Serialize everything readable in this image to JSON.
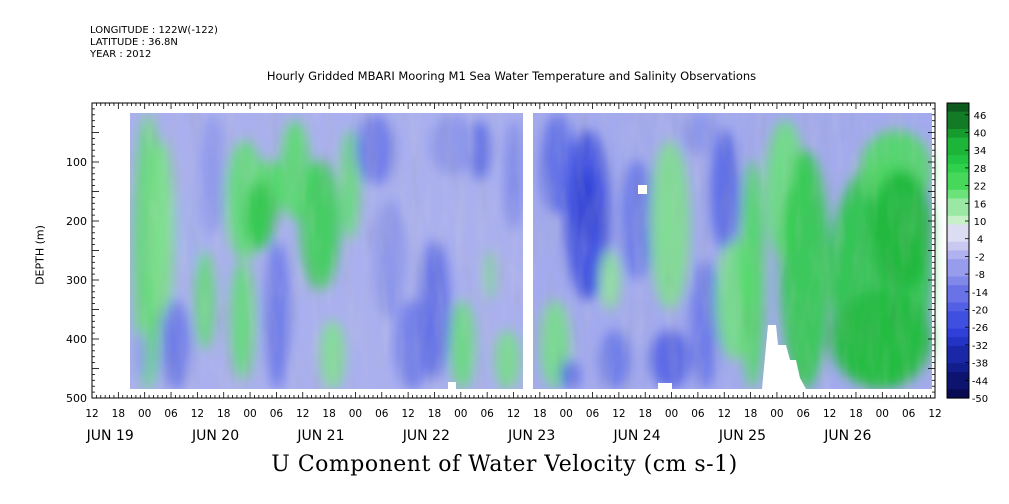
{
  "header": {
    "longitude": "LONGITUDE : 122W(-122)",
    "latitude": "LATITUDE : 36.8N",
    "year": "YEAR : 2012",
    "title": "Hourly Gridded MBARI Mooring M1 Sea Water Temperature and Salinity Observations"
  },
  "chart_data": {
    "type": "heatmap",
    "title": "Hourly Gridded MBARI Mooring M1 Sea Water Temperature and Salinity Observations",
    "xlabel": "U Component of Water Velocity (cm s-1)",
    "ylabel": "DEPTH (m)",
    "x_range_hours_labels": [
      "JUN 19 12",
      "JUN 26 12"
    ],
    "ylim": [
      500,
      0
    ],
    "y_ticks": [
      100,
      200,
      300,
      400,
      500
    ],
    "hour_tick_labels": [
      "12",
      "18",
      "00",
      "06",
      "12",
      "18",
      "00",
      "06",
      "12",
      "18",
      "00",
      "06",
      "12",
      "18",
      "00",
      "06",
      "12",
      "18",
      "00",
      "06",
      "12",
      "18",
      "00",
      "06",
      "12",
      "18",
      "00",
      "06",
      "12",
      "18",
      "00",
      "06",
      "12"
    ],
    "date_labels": [
      "JUN 19",
      "JUN 20",
      "JUN 21",
      "JUN 22",
      "JUN 23",
      "JUN 24",
      "JUN 25",
      "JUN 26"
    ],
    "colorbar": {
      "label_values": [
        "46",
        "40",
        "34",
        "28",
        "22",
        "16",
        "10",
        "4",
        "-2",
        "-8",
        "-14",
        "-20",
        "-26",
        "-32",
        "-38",
        "-44",
        "-50"
      ],
      "range": [
        -50,
        50
      ],
      "step": 3,
      "colors_high_to_low": [
        "#0e5a1e",
        "#137a26",
        "#179b2e",
        "#1db539",
        "#22c443",
        "#2ed04c",
        "#46d85a",
        "#6be27a",
        "#9ae8a3",
        "#c8f0c8",
        "#dcdcf2",
        "#c8c8f0",
        "#afb2ee",
        "#979dec",
        "#8088ea",
        "#6a72e8",
        "#5460e4",
        "#3f4fe0",
        "#2f3fd8",
        "#2333c4",
        "#1a28a8",
        "#121e8c",
        "#0c1470",
        "#080a52"
      ]
    },
    "gap_date": "JUN 22 / JUN 23 boundary"
  }
}
